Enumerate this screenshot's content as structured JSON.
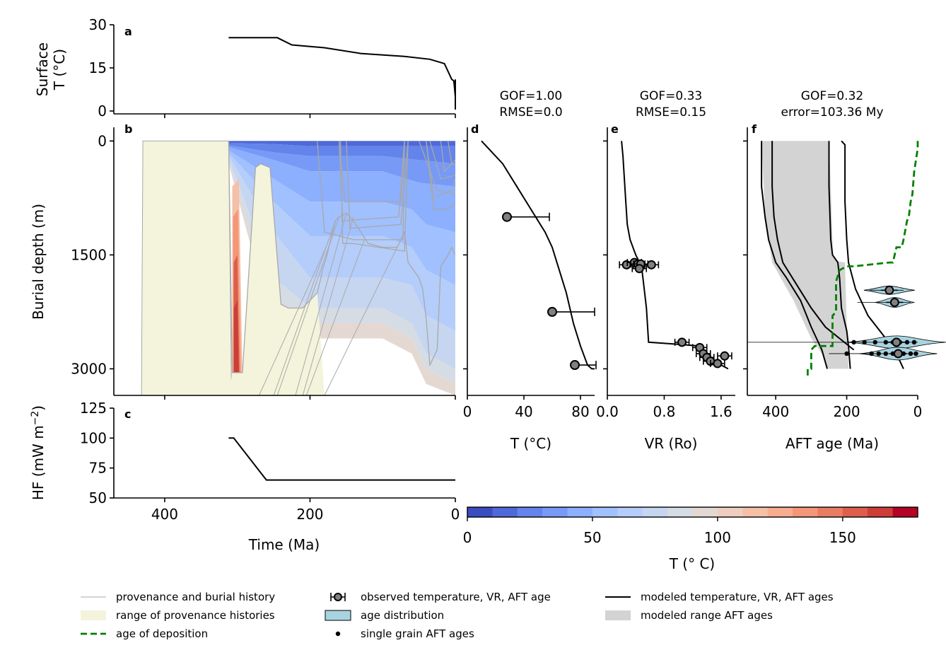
{
  "colors": {
    "provenance_fill": "#f4f4dc",
    "history_line": "#a8a8a8",
    "deposition_line": "#008000",
    "age_distribution_fill": "#a8d4e0",
    "model_range_fill": "#d3d3d3",
    "observed_marker": "#808080",
    "colormap": [
      "#3b4cc0",
      "#4f69d8",
      "#6384eb",
      "#779af7",
      "#8caffe",
      "#a1c0ff",
      "#b4cdfa",
      "#c6d6f1",
      "#d6dce4",
      "#e4d9d2",
      "#eecfbf",
      "#f5c0a6",
      "#f7ad8f",
      "#f39778",
      "#e97d61",
      "#dc5e4b",
      "#cb3f38",
      "#b40426"
    ]
  },
  "chart_data": [
    {
      "panel": "a",
      "type": "line",
      "ylabel": "Surface\nT (°C)",
      "xlim": [
        470,
        0
      ],
      "ylim": [
        -1,
        30
      ],
      "yticks": [
        30,
        15,
        0
      ],
      "series": [
        {
          "values": [
            [
              312,
              25.5
            ],
            [
              245,
              25.5
            ],
            [
              225,
              23
            ],
            [
              180,
              22
            ],
            [
              130,
              20
            ],
            [
              70,
              19
            ],
            [
              35,
              18
            ],
            [
              15,
              16.5
            ],
            [
              5,
              11
            ],
            [
              2,
              10.5
            ],
            [
              0,
              5
            ],
            [
              0,
              11
            ],
            [
              0,
              0.5
            ]
          ]
        }
      ]
    },
    {
      "panel": "b",
      "type": "area",
      "ylabel": "Burial depth (m)",
      "xlim": [
        470,
        0
      ],
      "ylim": [
        3350,
        -180
      ],
      "yticks": [
        0,
        1500,
        3000
      ],
      "provenance_range": [
        [
          432,
          3350
        ],
        [
          430,
          0
        ],
        [
          312,
          0
        ],
        [
          308,
          3350
        ]
      ],
      "burial_histories": [
        [
          [
            312,
            0
          ],
          [
            307,
            3050
          ],
          [
            293,
            3050
          ],
          [
            275,
            350
          ],
          [
            268,
            300
          ],
          [
            255,
            350
          ],
          [
            240,
            2150
          ],
          [
            230,
            2200
          ],
          [
            210,
            2200
          ],
          [
            190,
            2000
          ],
          [
            185,
            1800
          ],
          [
            183,
            1700
          ],
          [
            178,
            1550
          ],
          [
            165,
            1050
          ],
          [
            160,
            1000
          ],
          [
            150,
            950
          ],
          [
            140,
            1050
          ],
          [
            120,
            1350
          ],
          [
            100,
            1400
          ],
          [
            80,
            1400
          ],
          [
            75,
            1300
          ],
          [
            70,
            1200
          ],
          [
            65,
            1600
          ],
          [
            50,
            1800
          ],
          [
            45,
            1950
          ],
          [
            40,
            2350
          ],
          [
            35,
            2950
          ],
          [
            25,
            2750
          ],
          [
            20,
            1650
          ],
          [
            10,
            1500
          ],
          [
            5,
            1400
          ],
          [
            0,
            1500
          ]
        ],
        [
          [
            158,
            0
          ],
          [
            155,
            1350
          ],
          [
            140,
            1350
          ],
          [
            70,
            1450
          ],
          [
            65,
            0
          ]
        ],
        [
          [
            150,
            0
          ],
          [
            145,
            1150
          ],
          [
            75,
            1100
          ],
          [
            65,
            0
          ]
        ],
        [
          [
            160,
            0
          ],
          [
            155,
            1050
          ],
          [
            78,
            1000
          ],
          [
            70,
            0
          ]
        ],
        [
          [
            160,
            0
          ],
          [
            152,
            800
          ],
          [
            75,
            800
          ],
          [
            70,
            0
          ]
        ],
        [
          [
            190,
            0
          ],
          [
            180,
            1200
          ],
          [
            140,
            1300
          ],
          [
            72,
            1300
          ],
          [
            70,
            0
          ]
        ],
        [
          [
            40,
            0
          ],
          [
            30,
            750
          ],
          [
            5,
            650
          ],
          [
            0,
            500
          ]
        ],
        [
          [
            50,
            0
          ],
          [
            25,
            650
          ],
          [
            0,
            700
          ]
        ],
        [
          [
            40,
            0
          ],
          [
            30,
            900
          ],
          [
            10,
            900
          ],
          [
            0,
            800
          ]
        ],
        [
          [
            20,
            0
          ],
          [
            15,
            400
          ],
          [
            0,
            250
          ]
        ],
        [
          [
            35,
            0
          ],
          [
            20,
            500
          ],
          [
            0,
            450
          ]
        ],
        [
          [
            10,
            0
          ],
          [
            5,
            300
          ],
          [
            0,
            300
          ]
        ]
      ],
      "burial_fan": [
        [
          [
            178,
            1400
          ],
          [
            270,
            3350
          ]
        ],
        [
          [
            165,
            1050
          ],
          [
            250,
            3350
          ]
        ],
        [
          [
            160,
            1000
          ],
          [
            245,
            3350
          ]
        ],
        [
          [
            150,
            950
          ],
          [
            220,
            3350
          ]
        ],
        [
          [
            140,
            1000
          ],
          [
            210,
            3350
          ]
        ],
        [
          [
            125,
            1300
          ],
          [
            205,
            3350
          ]
        ],
        [
          [
            75,
            1300
          ],
          [
            180,
            3350
          ]
        ]
      ],
      "temperature_contours": "T (° C) colormap 0–180, 10 °C levels"
    },
    {
      "panel": "c",
      "type": "line",
      "ylabel": "HF (mW m⁻²)",
      "xlabel": "Time (Ma)",
      "xlim": [
        470,
        0
      ],
      "ylim": [
        50,
        125
      ],
      "xticks": [
        400,
        200,
        0
      ],
      "yticks": [
        125,
        100,
        75,
        50
      ],
      "series": [
        {
          "values": [
            [
              312,
              100
            ],
            [
              305,
              100
            ],
            [
              260,
              65
            ],
            [
              0,
              65
            ]
          ]
        }
      ]
    },
    {
      "panel": "d",
      "type": "scatter",
      "title": "GOF=1.00\nRMSE=0.0",
      "xlabel": "T (°C)",
      "xlim": [
        0,
        90
      ],
      "xticks": [
        0,
        40,
        80
      ],
      "ylim": [
        3350,
        -180
      ],
      "modeled": [
        [
          10,
          0
        ],
        [
          25,
          300
        ],
        [
          35,
          600
        ],
        [
          45,
          900
        ],
        [
          55,
          1200
        ],
        [
          60,
          1400
        ],
        [
          65,
          1700
        ],
        [
          70,
          2000
        ],
        [
          75,
          2400
        ],
        [
          80,
          2700
        ],
        [
          85,
          2950
        ],
        [
          88,
          3000
        ],
        [
          90,
          3000
        ]
      ],
      "observed": [
        {
          "x": 28,
          "y": 1000,
          "xerr": [
            0,
            30
          ]
        },
        {
          "x": 60,
          "y": 2250,
          "xerr": [
            0,
            30
          ]
        },
        {
          "x": 76,
          "y": 2950,
          "xerr": [
            0,
            15
          ]
        }
      ]
    },
    {
      "panel": "e",
      "type": "scatter",
      "title": "GOF=0.33\nRMSE=0.15",
      "xlabel": "VR (Ro)",
      "xlim": [
        0.0,
        1.8
      ],
      "xticks": [
        0.0,
        0.8,
        1.6
      ],
      "ylim": [
        3350,
        -180
      ],
      "modeled": [
        [
          0.2,
          0
        ],
        [
          0.22,
          200
        ],
        [
          0.24,
          500
        ],
        [
          0.26,
          800
        ],
        [
          0.28,
          1100
        ],
        [
          0.32,
          1300
        ],
        [
          0.4,
          1500
        ],
        [
          0.48,
          1650
        ],
        [
          0.5,
          1800
        ],
        [
          0.55,
          2200
        ],
        [
          0.58,
          2650
        ],
        [
          1.05,
          2680
        ],
        [
          1.3,
          2700
        ],
        [
          1.4,
          2800
        ],
        [
          1.5,
          2900
        ],
        [
          1.6,
          2950
        ],
        [
          1.7,
          3000
        ]
      ],
      "observed": [
        {
          "x": 0.27,
          "y": 1630
        },
        {
          "x": 0.38,
          "y": 1600
        },
        {
          "x": 0.43,
          "y": 1620
        },
        {
          "x": 0.47,
          "y": 1620
        },
        {
          "x": 0.45,
          "y": 1680
        },
        {
          "x": 0.62,
          "y": 1630
        },
        {
          "x": 1.05,
          "y": 2650
        },
        {
          "x": 1.3,
          "y": 2720
        },
        {
          "x": 1.35,
          "y": 2800
        },
        {
          "x": 1.4,
          "y": 2850
        },
        {
          "x": 1.45,
          "y": 2900
        },
        {
          "x": 1.55,
          "y": 2930
        },
        {
          "x": 1.65,
          "y": 2830
        }
      ]
    },
    {
      "panel": "f",
      "type": "scatter",
      "title": "GOF=0.32\nerror=103.36 My",
      "xlabel": "AFT age (Ma)",
      "xlim": [
        480,
        0
      ],
      "xticks": [
        400,
        200,
        0
      ],
      "ylim": [
        3350,
        -180
      ],
      "modeled_range": [
        [
          440,
          0
        ],
        [
          435,
          500
        ],
        [
          430,
          1000
        ],
        [
          410,
          1600
        ],
        [
          350,
          2100
        ],
        [
          300,
          2600
        ],
        [
          270,
          2800
        ],
        [
          255,
          3000
        ],
        [
          195,
          3000
        ],
        [
          200,
          2400
        ],
        [
          205,
          1600
        ],
        [
          230,
          1580
        ],
        [
          240,
          1500
        ],
        [
          240,
          1300
        ],
        [
          245,
          600
        ],
        [
          250,
          0
        ]
      ],
      "modeled_lines": [
        [
          [
            440,
            0
          ],
          [
            440,
            600
          ],
          [
            430,
            1000
          ],
          [
            420,
            1300
          ],
          [
            400,
            1600
          ],
          [
            370,
            1800
          ],
          [
            330,
            2100
          ],
          [
            300,
            2450
          ],
          [
            270,
            2750
          ],
          [
            255,
            3000
          ]
        ],
        [
          [
            410,
            0
          ],
          [
            410,
            600
          ],
          [
            405,
            1000
          ],
          [
            395,
            1300
          ],
          [
            380,
            1600
          ],
          [
            340,
            1900
          ],
          [
            300,
            2200
          ],
          [
            260,
            2450
          ],
          [
            220,
            2600
          ],
          [
            180,
            2750
          ]
        ],
        [
          [
            250,
            0
          ],
          [
            250,
            600
          ],
          [
            245,
            1300
          ],
          [
            240,
            1500
          ],
          [
            225,
            1600
          ],
          [
            220,
            1800
          ],
          [
            215,
            2200
          ],
          [
            200,
            2500
          ],
          [
            195,
            2700
          ],
          [
            190,
            3000
          ]
        ],
        [
          [
            215,
            0
          ],
          [
            205,
            50
          ],
          [
            205,
            800
          ],
          [
            200,
            1300
          ],
          [
            195,
            1600
          ],
          [
            175,
            1950
          ],
          [
            140,
            2300
          ],
          [
            90,
            2600
          ],
          [
            60,
            2800
          ],
          [
            40,
            3000
          ]
        ]
      ],
      "deposition_age": [
        [
          0,
          0
        ],
        [
          0,
          100
        ],
        [
          10,
          400
        ],
        [
          15,
          700
        ],
        [
          20,
          800
        ],
        [
          25,
          1000
        ],
        [
          30,
          1050
        ],
        [
          40,
          1300
        ],
        [
          45,
          1400
        ],
        [
          60,
          1400
        ],
        [
          70,
          1600
        ],
        [
          80,
          1600
        ],
        [
          180,
          1650
        ],
        [
          200,
          1650
        ],
        [
          220,
          1700
        ],
        [
          230,
          1850
        ],
        [
          230,
          2250
        ],
        [
          240,
          2300
        ],
        [
          240,
          2700
        ],
        [
          290,
          2700
        ],
        [
          300,
          2750
        ],
        [
          300,
          3000
        ],
        [
          310,
          3000
        ],
        [
          310,
          3100
        ]
      ],
      "observed": [
        {
          "x": 80,
          "y": 1965
        },
        {
          "x": 65,
          "y": 2125
        },
        {
          "x": 60,
          "y": 2650
        },
        {
          "x": 55,
          "y": 2800
        }
      ],
      "single_grains": [
        [
          180,
          2650
        ],
        [
          150,
          2650
        ],
        [
          120,
          2650
        ],
        [
          90,
          2650
        ],
        [
          70,
          2650
        ],
        [
          50,
          2650
        ],
        [
          30,
          2650
        ],
        [
          10,
          2650
        ],
        [
          200,
          2800
        ],
        [
          130,
          2800
        ],
        [
          110,
          2800
        ],
        [
          90,
          2800
        ],
        [
          70,
          2800
        ],
        [
          60,
          2800
        ],
        [
          50,
          2800
        ],
        [
          40,
          2800
        ],
        [
          20,
          2800
        ],
        [
          5,
          2800
        ]
      ]
    }
  ],
  "colorbar": {
    "label": "T (° C)",
    "min": 0,
    "max": 180,
    "ticks": [
      "0",
      "50",
      "100",
      "150"
    ]
  },
  "panel_labels": [
    "a",
    "b",
    "c",
    "d",
    "e",
    "f"
  ],
  "axis_ticks": {
    "a_y": [
      "30",
      "15",
      "0"
    ],
    "b_y": [
      "0",
      "1500",
      "3000"
    ],
    "c_y": [
      "125",
      "100",
      "75",
      "50"
    ],
    "c_x": [
      "400",
      "200",
      "0"
    ],
    "d_x": [
      "0",
      "40",
      "80"
    ],
    "e_x": [
      "0.0",
      "0.8",
      "1.6"
    ],
    "f_x": [
      "400",
      "200",
      "0"
    ]
  },
  "legend": [
    {
      "label": "provenance and burial history",
      "kind": "line-gray"
    },
    {
      "label": "range of provenance histories",
      "kind": "patch-provenance"
    },
    {
      "label": "age of deposition",
      "kind": "dashed-green"
    },
    {
      "label": "observed temperature, VR, AFT age",
      "kind": "errorbar-marker"
    },
    {
      "label": "age distribution",
      "kind": "patch-blue"
    },
    {
      "label": "single grain AFT ages",
      "kind": "dot"
    },
    {
      "label": "modeled temperature, VR, AFT ages",
      "kind": "line-black"
    },
    {
      "label": "modeled range AFT ages",
      "kind": "patch-gray"
    }
  ],
  "labels": {
    "a_ylabel_1": "Surface",
    "a_ylabel_2": "T (°C)",
    "b_ylabel": "Burial depth (m)",
    "c_ylabel": "HF (mW m",
    "c_ylabel_sup": "−2",
    "c_ylabel_end": ")",
    "c_xlabel": "Time (Ma)",
    "d_title_1": "GOF=1.00",
    "d_title_2": "RMSE=0.0",
    "d_xlabel": "T (°C)",
    "e_title_1": "GOF=0.33",
    "e_title_2": "RMSE=0.15",
    "e_xlabel": "VR (Ro)",
    "f_title_1": "GOF=0.32",
    "f_title_2": "error=103.36 My",
    "f_xlabel": "AFT age (Ma)"
  }
}
